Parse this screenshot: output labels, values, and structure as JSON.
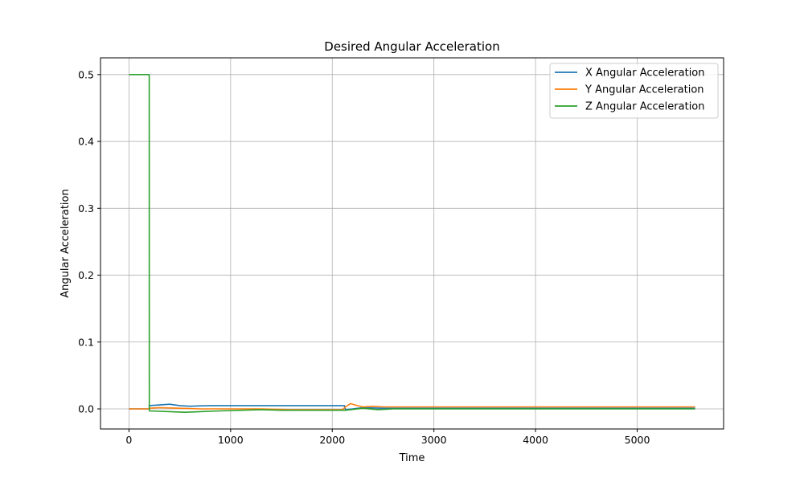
{
  "chart_data": {
    "type": "line",
    "title": "Desired Angular Acceleration",
    "xlabel": "Time",
    "ylabel": "Angular Acceleration",
    "xlim": [
      -280,
      5850
    ],
    "ylim": [
      -0.03,
      0.525
    ],
    "xticks": [
      0,
      1000,
      2000,
      3000,
      4000,
      5000
    ],
    "xtick_labels": [
      "0",
      "1000",
      "2000",
      "3000",
      "4000",
      "5000"
    ],
    "yticks": [
      0.0,
      0.1,
      0.2,
      0.3,
      0.4,
      0.5
    ],
    "ytick_labels": [
      "0.0",
      "0.1",
      "0.2",
      "0.3",
      "0.4",
      "0.5"
    ],
    "grid": true,
    "legend_position": "top-right",
    "series": [
      {
        "name": "X Angular Acceleration",
        "color": "#1f77b4",
        "x": [
          0,
          199,
          200,
          400,
          500,
          600,
          800,
          1000,
          1200,
          1500,
          1800,
          2000,
          2120,
          2130,
          2200,
          2300,
          2500,
          3000,
          3500,
          4000,
          4500,
          5000,
          5570
        ],
        "y": [
          0,
          0,
          0.005,
          0.007,
          0.005,
          0.004,
          0.005,
          0.005,
          0.005,
          0.005,
          0.005,
          0.005,
          0.005,
          -0.001,
          0.0,
          0.002,
          0.001,
          0.001,
          0.001,
          0.001,
          0.001,
          0.001,
          0.001
        ]
      },
      {
        "name": "Y Angular Acceleration",
        "color": "#ff7f0e",
        "x": [
          0,
          199,
          200,
          300,
          500,
          700,
          1000,
          1300,
          1600,
          1900,
          2100,
          2130,
          2180,
          2220,
          2300,
          2400,
          2500,
          3000,
          3500,
          4000,
          4500,
          5000,
          5570
        ],
        "y": [
          0,
          0,
          0.001,
          0.002,
          0.001,
          0.0,
          0.0,
          0.0,
          -0.001,
          -0.001,
          -0.001,
          0.003,
          0.008,
          0.006,
          0.003,
          0.004,
          0.003,
          0.003,
          0.003,
          0.003,
          0.003,
          0.003,
          0.003
        ]
      },
      {
        "name": "Z Angular Acceleration",
        "color": "#2ca02c",
        "x": [
          0,
          199,
          200,
          400,
          550,
          700,
          900,
          1100,
          1300,
          1500,
          1800,
          2000,
          2130,
          2300,
          2450,
          2600,
          3000,
          3500,
          4000,
          4500,
          5000,
          5570
        ],
        "y": [
          0.5,
          0.5,
          -0.003,
          -0.004,
          -0.005,
          -0.004,
          -0.003,
          -0.002,
          -0.001,
          -0.002,
          -0.002,
          -0.002,
          -0.002,
          0.001,
          -0.001,
          0.0,
          0.0,
          0.0,
          0.0,
          0.0,
          0.0,
          0.0
        ]
      }
    ]
  }
}
